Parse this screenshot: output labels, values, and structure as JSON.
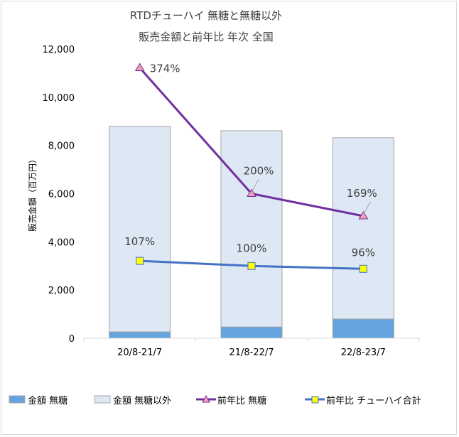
{
  "chart_data": {
    "type": "bar",
    "title": "RTDチューハイ 無糖と無糖以外",
    "subtitle": "販売金額と前年比 年次 全国",
    "xlabel": "",
    "ylabel": "販売金額（百万円）",
    "ylim": [
      0,
      12000
    ],
    "yticks": [
      "0",
      "2,000",
      "4,000",
      "6,000",
      "8,000",
      "10,000",
      "12,000"
    ],
    "ytick_values": [
      0,
      2000,
      4000,
      6000,
      8000,
      10000,
      12000
    ],
    "y2lim": [
      0,
      4.0
    ],
    "grid": false,
    "categories": [
      "20/8-21/7",
      "21/8-22/7",
      "22/8-23/7"
    ],
    "series": [
      {
        "name": "金額 無糖",
        "type": "bar",
        "stack": "amount",
        "color": "#64a3dd",
        "values": [
          265,
          470,
          800
        ]
      },
      {
        "name": "金額 無糖以外",
        "type": "bar",
        "stack": "amount",
        "color": "#dde8f4",
        "values": [
          8525,
          8140,
          7520
        ]
      },
      {
        "name": "前年比 無糖",
        "type": "line",
        "axis": "secondary",
        "color": "#7030a0",
        "marker": "triangle",
        "marker_color": "#f4a0b0",
        "values": [
          3.74,
          2.0,
          1.69
        ],
        "labels": [
          "374%",
          "200%",
          "169%"
        ]
      },
      {
        "name": "前年比 チューハイ合計",
        "type": "line",
        "axis": "secondary",
        "color": "#4472c4",
        "marker": "square",
        "marker_color": "#ffff00",
        "values": [
          1.07,
          1.0,
          0.96
        ],
        "labels": [
          "107%",
          "100%",
          "96%"
        ]
      }
    ],
    "legend": {
      "placement": "bottom",
      "labels": [
        "金額 無糖",
        "金額 無糖以外",
        "前年比 無糖",
        "前年比 チューハイ合計"
      ]
    }
  }
}
